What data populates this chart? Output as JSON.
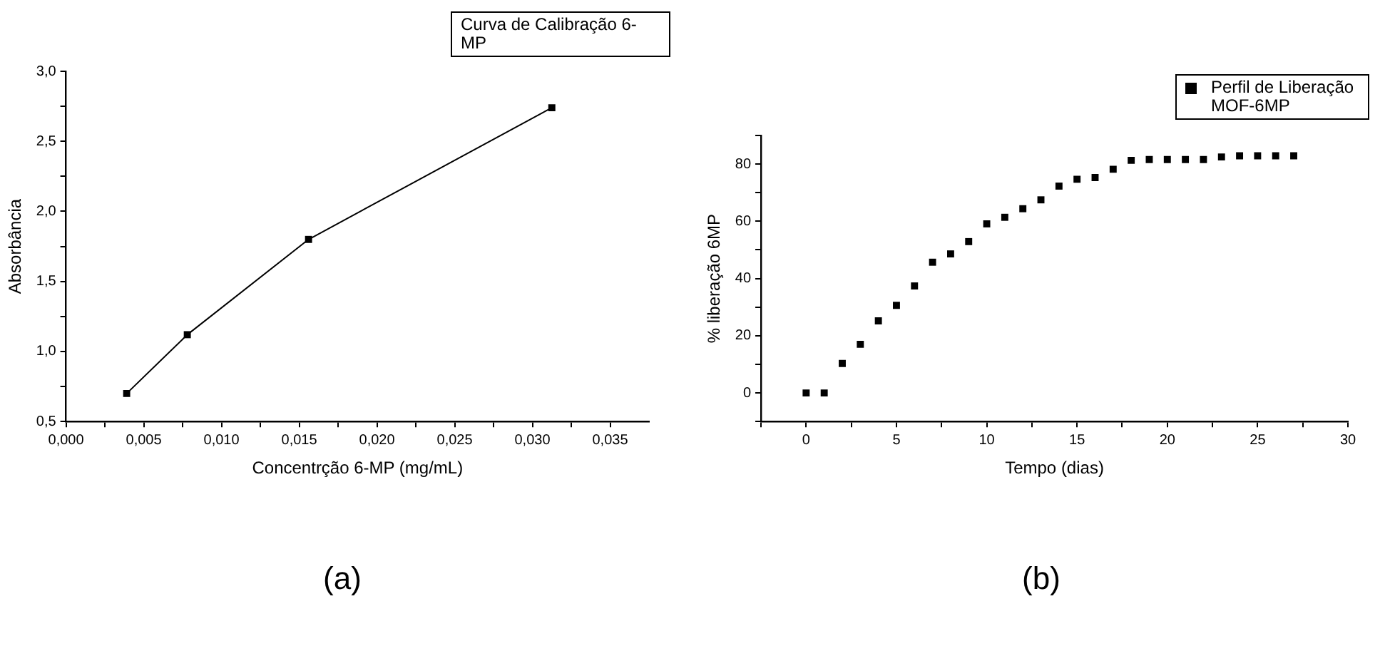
{
  "chart_data": [
    {
      "type": "line",
      "xlabel": "Concentrção 6-MP (mg/mL)",
      "ylabel": "Absorbância",
      "x": [
        0.0039,
        0.0078,
        0.0156,
        0.03125
      ],
      "series": [
        {
          "name": "Curva de Calibração 6-MP",
          "color": "#000000",
          "values": [
            0.7,
            1.12,
            1.8,
            2.74
          ]
        }
      ],
      "xlim": [
        0,
        0.0375
      ],
      "xticks": [
        {
          "value": 0,
          "label": "0,000"
        },
        {
          "value": 0.0025,
          "label": null
        },
        {
          "value": 0.005,
          "label": "0,005"
        },
        {
          "value": 0.0075,
          "label": null
        },
        {
          "value": 0.01,
          "label": "0,010"
        },
        {
          "value": 0.0125,
          "label": null
        },
        {
          "value": 0.015,
          "label": "0,015"
        },
        {
          "value": 0.0175,
          "label": null
        },
        {
          "value": 0.02,
          "label": "0,020"
        },
        {
          "value": 0.0225,
          "label": null
        },
        {
          "value": 0.025,
          "label": "0,025"
        },
        {
          "value": 0.0275,
          "label": null
        },
        {
          "value": 0.03,
          "label": "0,030"
        },
        {
          "value": 0.0325,
          "label": null
        },
        {
          "value": 0.035,
          "label": "0,035"
        }
      ],
      "ylim": [
        0.5,
        3.0
      ],
      "yticks": [
        {
          "value": 0.5,
          "label": "0,5"
        },
        {
          "value": 0.75,
          "label": null
        },
        {
          "value": 1.0,
          "label": "1,0"
        },
        {
          "value": 1.25,
          "label": null
        },
        {
          "value": 1.5,
          "label": "1,5"
        },
        {
          "value": 1.75,
          "label": null
        },
        {
          "value": 2.0,
          "label": "2,0"
        },
        {
          "value": 2.25,
          "label": null
        },
        {
          "value": 2.5,
          "label": "2,5"
        },
        {
          "value": 2.75,
          "label": null
        },
        {
          "value": 3.0,
          "label": "3,0"
        }
      ],
      "marker": "square",
      "line_style": "solid",
      "legend": "top right",
      "annotations": [
        "(a)"
      ]
    },
    {
      "type": "scatter",
      "xlabel": "Tempo (dias)",
      "ylabel": "% liberação 6MP",
      "x": [
        0,
        1,
        2,
        3,
        4,
        5,
        6,
        7,
        8,
        9,
        10,
        11,
        12,
        13,
        14,
        15,
        16,
        17,
        18,
        19,
        20,
        21,
        22,
        23,
        24,
        25,
        26,
        27
      ],
      "series": [
        {
          "name": "Perfil de Liberação MOF-6MP",
          "color": "#000000",
          "values": [
            0,
            0,
            10.3,
            17,
            25.2,
            30.6,
            37.4,
            45.7,
            48.6,
            52.9,
            59.1,
            61.4,
            64.4,
            67.5,
            72.3,
            74.7,
            75.3,
            78.2,
            81.3,
            81.6,
            81.6,
            81.6,
            81.6,
            82.5,
            82.9,
            82.9,
            82.9,
            82.9
          ]
        }
      ],
      "xlim": [
        -2.5,
        30
      ],
      "xticks": [
        {
          "value": -2.5,
          "label": null
        },
        0,
        {
          "value": 2.5,
          "label": null
        },
        5,
        {
          "value": 7.5,
          "label": null
        },
        10,
        {
          "value": 12.5,
          "label": null
        },
        15,
        {
          "value": 17.5,
          "label": null
        },
        20,
        {
          "value": 22.5,
          "label": null
        },
        25,
        {
          "value": 27.5,
          "label": null
        },
        30
      ],
      "ylim": [
        -10,
        90
      ],
      "yticks": [
        {
          "value": -10,
          "label": null
        },
        0,
        {
          "value": 10,
          "label": null
        },
        20,
        {
          "value": 30,
          "label": null
        },
        40,
        {
          "value": 50,
          "label": null
        },
        60,
        {
          "value": 70,
          "label": null
        },
        80,
        {
          "value": 90,
          "label": null
        }
      ],
      "marker": "square",
      "legend": "top right",
      "annotations": [
        "(b)"
      ]
    }
  ]
}
